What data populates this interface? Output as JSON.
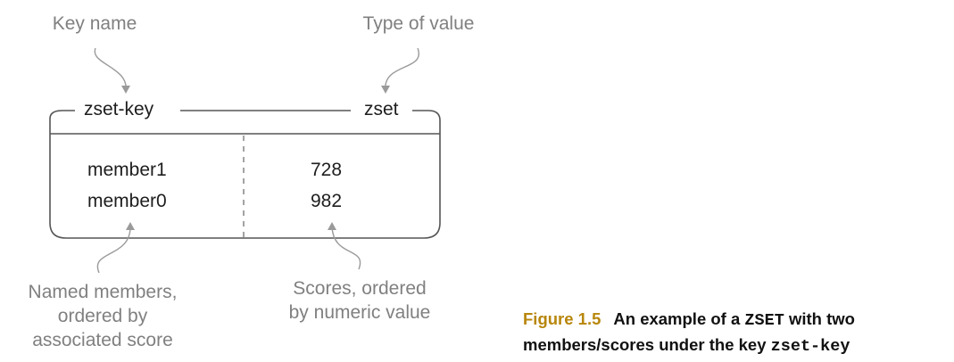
{
  "annotations": {
    "key_name": "Key name",
    "type_of_value": "Type of value",
    "members_line1": "Named members,",
    "members_line2": "ordered by",
    "members_line3": "associated score",
    "scores_line1": "Scores, ordered",
    "scores_line2": "by numeric value"
  },
  "box": {
    "key": "zset-key",
    "type": "zset",
    "rows": [
      {
        "member": "member1",
        "score": "728"
      },
      {
        "member": "member0",
        "score": "982"
      }
    ]
  },
  "caption": {
    "figure_label": "Figure 1.5",
    "line1_text": "An example of a ",
    "line1_code": "ZSET",
    "line1_tail": " with two",
    "line2_text": "members/scores under the key ",
    "line2_code": "zset-key"
  }
}
